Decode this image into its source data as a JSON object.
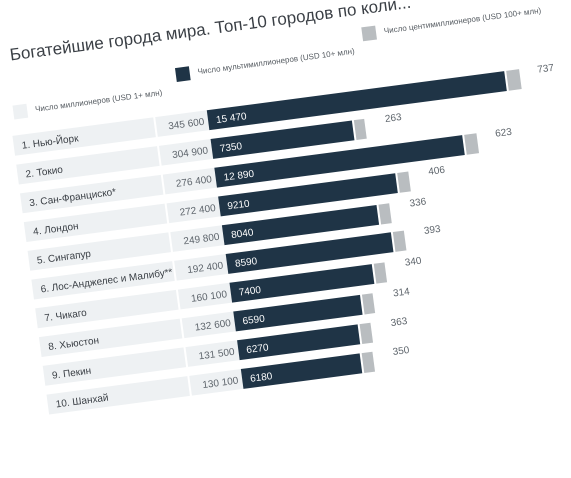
{
  "chart_data": {
    "type": "bar",
    "title": "Богатейшие города мира. Топ-10 городов по коли...",
    "legend": [
      {
        "key": "millionaires",
        "label": "Число миллионеров (USD 1+ млн)",
        "color": "#eef1f3"
      },
      {
        "key": "multimillionaires",
        "label": "Число мультимиллионеров (USD 10+ млн)",
        "color": "#1f3446"
      },
      {
        "key": "centimillionaires",
        "label": "Число центимиллионеров (USD 100+ млн)",
        "color": "#b9bdc0"
      }
    ],
    "categories": [
      "1. Нью-Йорк",
      "2. Токио",
      "3. Сан-Франциско*",
      "4. Лондон",
      "5. Сингапур",
      "6. Лос-Анджелес и Малибу**",
      "7. Чикаго",
      "8. Хьюстон",
      "9. Пекин",
      "10. Шанхай"
    ],
    "series": [
      {
        "key": "millionaires",
        "values": [
          345600,
          304900,
          276400,
          272400,
          249800,
          192400,
          160100,
          132600,
          131500,
          130100
        ],
        "labels": [
          "345 600",
          "304 900",
          "276 400",
          "272 400",
          "249 800",
          "192 400",
          "160 100",
          "132 600",
          "131 500",
          "130 100"
        ]
      },
      {
        "key": "multimillionaires",
        "values": [
          15470,
          7350,
          12890,
          9210,
          8040,
          8590,
          7400,
          6590,
          6270,
          6180
        ],
        "labels": [
          "15 470",
          "7350",
          "12 890",
          "9210",
          "8040",
          "8590",
          "7400",
          "6590",
          "6270",
          "6180"
        ]
      },
      {
        "key": "centimillionaires",
        "values": [
          737,
          263,
          623,
          406,
          336,
          393,
          340,
          314,
          363,
          350
        ],
        "labels": [
          "737",
          "263",
          "623",
          "406",
          "336",
          "393",
          "340",
          "314",
          "363",
          "350"
        ]
      }
    ]
  }
}
